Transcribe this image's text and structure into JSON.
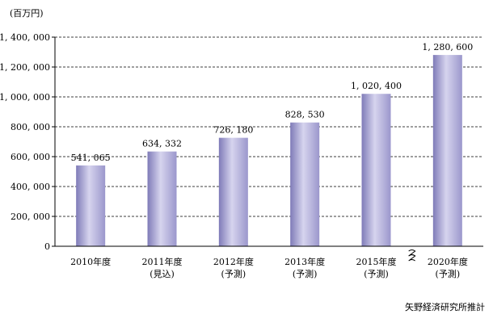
{
  "chart_data": {
    "type": "bar",
    "unit_label": "(百万円)",
    "categories": [
      {
        "year": "2010年度",
        "note": ""
      },
      {
        "year": "2011年度",
        "note": "(見込)"
      },
      {
        "year": "2012年度",
        "note": "(予測)"
      },
      {
        "year": "2013年度",
        "note": "(予測)"
      },
      {
        "year": "2015年度",
        "note": "(予測)"
      },
      {
        "year": "2020年度",
        "note": "(予測)"
      }
    ],
    "values": [
      541065,
      634332,
      726180,
      828530,
      1020400,
      1280600
    ],
    "value_labels": [
      "541, 065",
      "634, 332",
      "726, 180",
      "828, 530",
      "1, 020, 400",
      "1, 280, 600"
    ],
    "ylim": [
      0,
      1400000
    ],
    "yticks": [
      0,
      200000,
      400000,
      600000,
      800000,
      1000000,
      1200000,
      1400000
    ],
    "ytick_labels": [
      "0",
      "200, 000",
      "400, 000",
      "600, 000",
      "800, 000",
      "1, 000, 000",
      "1, 200, 000",
      "1, 400, 000"
    ],
    "grid": "dashed-horizontal",
    "axis_break_between": [
      "2015年度",
      "2020年度"
    ],
    "bar_color": "#9b97cc",
    "bar_highlight": "#d6d4ee",
    "bar_shadow": "#7f7bb8"
  },
  "source_note": "矢野経済研究所推計"
}
